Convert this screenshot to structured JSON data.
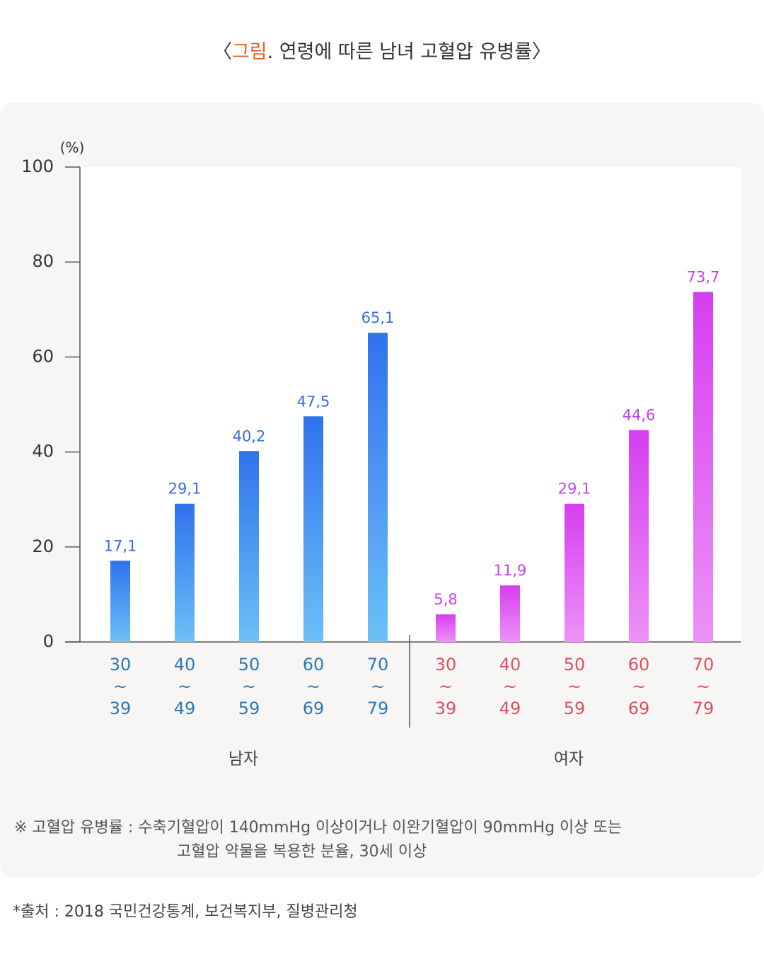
{
  "chart_data": {
    "type": "bar",
    "title": [
      "〈",
      "그림",
      ". 연령에 따른 남녀 고혈압 유병률〉"
    ],
    "y_unit": "(%)",
    "categories": [
      [
        "30",
        "~",
        "39"
      ],
      [
        "40",
        "~",
        "49"
      ],
      [
        "50",
        "~",
        "59"
      ],
      [
        "60",
        "~",
        "69"
      ],
      [
        "70",
        "~",
        "79"
      ]
    ],
    "series": [
      {
        "name": "남자",
        "color": "#3f86f0",
        "label_color": "#2a78b8",
        "value_color": "#3a6ed8",
        "values": [
          17.1,
          29.1,
          40.2,
          47.5,
          65.1
        ],
        "value_labels": [
          "17,1",
          "29,1",
          "40,2",
          "47,5",
          "65,1"
        ]
      },
      {
        "name": "여자",
        "color": "#d84cf2",
        "label_color": "#e0505e",
        "value_color": "#c444e0",
        "values": [
          5.8,
          11.9,
          29.1,
          44.6,
          73.7
        ],
        "value_labels": [
          "5,8",
          "11,9",
          "29,1",
          "44,6",
          "73,7"
        ]
      }
    ],
    "ylim": [
      0,
      100
    ],
    "yticks": [
      0,
      20,
      40,
      60,
      80,
      100
    ],
    "notes": [
      "※ 고혈압 유병률 : 수축기혈압이 140mmHg 이상이거나 이완기혈압이 90mmHg 이상 또는",
      "고혈압 약물을 복용한 분율, 30세 이상"
    ],
    "source": "*출처 : 2018 국민건강통계, 보건복지부, 질병관리청"
  }
}
